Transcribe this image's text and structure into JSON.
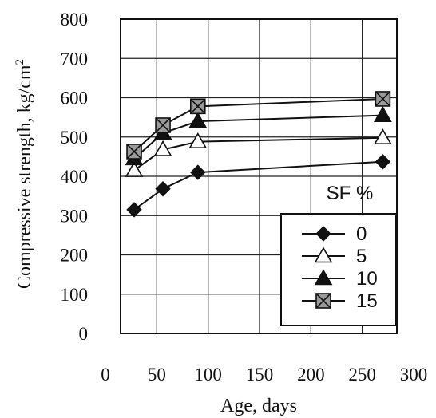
{
  "chart_data": {
    "type": "line",
    "xlabel": "Age, days",
    "ylabel": "Compressive strength, kg/cm",
    "ylabel_sup": "2",
    "xlim": [
      0,
      300
    ],
    "ylim": [
      0,
      800
    ],
    "x_ticks": [
      0,
      50,
      100,
      150,
      200,
      250,
      300
    ],
    "y_ticks": [
      0,
      100,
      200,
      300,
      400,
      500,
      600,
      700,
      800
    ],
    "grid": true,
    "legend_title": "SF %",
    "legend_position": "bottom-right",
    "x": [
      28,
      56,
      90,
      270
    ],
    "series": [
      {
        "name": "0",
        "marker": "diamond",
        "values": [
          315,
          368,
          410,
          437
        ]
      },
      {
        "name": "5",
        "marker": "triangle-open",
        "values": [
          415,
          468,
          488,
          498
        ]
      },
      {
        "name": "10",
        "marker": "triangle-filled",
        "values": [
          445,
          510,
          540,
          555
        ]
      },
      {
        "name": "15",
        "marker": "square-x",
        "values": [
          463,
          530,
          578,
          597
        ]
      }
    ]
  }
}
